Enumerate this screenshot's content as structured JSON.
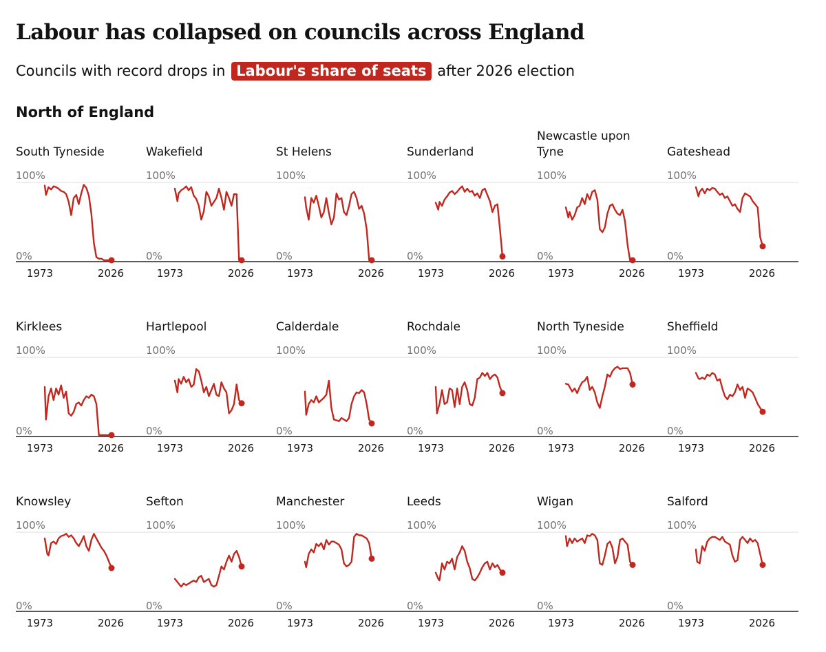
{
  "title": "Labour has collapsed on councils across England",
  "subtitle": {
    "before": "Councils with record drops in",
    "highlight": "Labour's share of seats",
    "after": "after 2026 election"
  },
  "section": "North of England",
  "colors": {
    "line": "#c0281f",
    "highlight_bg": "#c0281f",
    "axis": "#222222",
    "gridline": "#dddddd",
    "muted_text": "#707070"
  },
  "chart_data": {
    "type": "line",
    "layout": "small-multiples",
    "y_unit": "Labour share of seats (%)",
    "ylim": [
      0,
      100
    ],
    "xlim": [
      1973,
      2026
    ],
    "y_tick_labels": [
      "100%",
      "0%"
    ],
    "x_tick_labels": [
      "1973",
      "2026"
    ],
    "endpoint_marker": "dot",
    "panels": [
      {
        "name_lines": [
          "South Tyneside"
        ],
        "x": [
          1973,
          1974,
          1976,
          1978,
          1980,
          1982,
          1984,
          1986,
          1988,
          1990,
          1992,
          1994,
          1996,
          1998,
          2000,
          2002,
          2004,
          2006,
          2008,
          2010,
          2012,
          2014,
          2016,
          2018,
          2020,
          2022,
          2024,
          2026
        ],
        "values": [
          96,
          84,
          94,
          91,
          95,
          94,
          92,
          89,
          88,
          85,
          75,
          58,
          80,
          84,
          72,
          86,
          97,
          93,
          83,
          60,
          22,
          4,
          2,
          2,
          0,
          0,
          0,
          0
        ]
      },
      {
        "name_lines": [
          "Wakefield"
        ],
        "x": [
          1973,
          1975,
          1976,
          1978,
          1980,
          1982,
          1984,
          1986,
          1988,
          1990,
          1992,
          1994,
          1996,
          1998,
          2000,
          2002,
          2004,
          2006,
          2008,
          2010,
          2012,
          2014,
          2016,
          2018,
          2020,
          2022,
          2024,
          2026
        ],
        "values": [
          92,
          76,
          86,
          90,
          92,
          95,
          90,
          94,
          83,
          79,
          70,
          52,
          63,
          88,
          82,
          70,
          75,
          80,
          92,
          80,
          65,
          88,
          80,
          70,
          85,
          85,
          0,
          0
        ]
      },
      {
        "name_lines": [
          "St Helens"
        ],
        "x": [
          1973,
          1974,
          1976,
          1978,
          1980,
          1982,
          1984,
          1986,
          1988,
          1990,
          1992,
          1994,
          1996,
          1998,
          2000,
          2002,
          2004,
          2006,
          2008,
          2010,
          2012,
          2014,
          2016,
          2018,
          2020,
          2022,
          2024,
          2026
        ],
        "values": [
          81,
          68,
          52,
          80,
          74,
          83,
          70,
          55,
          62,
          80,
          61,
          46,
          55,
          86,
          78,
          80,
          62,
          58,
          70,
          85,
          88,
          80,
          66,
          70,
          60,
          40,
          0,
          0
        ]
      },
      {
        "name_lines": [
          "Sunderland"
        ],
        "x": [
          1973,
          1975,
          1976,
          1978,
          1980,
          1982,
          1984,
          1986,
          1988,
          1990,
          1992,
          1994,
          1996,
          1998,
          2000,
          2002,
          2004,
          2006,
          2008,
          2010,
          2012,
          2014,
          2016,
          2018,
          2020,
          2022,
          2024,
          2026
        ],
        "values": [
          74,
          65,
          75,
          70,
          78,
          82,
          87,
          89,
          85,
          88,
          92,
          95,
          88,
          92,
          88,
          89,
          83,
          86,
          80,
          90,
          92,
          84,
          76,
          62,
          70,
          72,
          40,
          5
        ]
      },
      {
        "name_lines": [
          "Newcastle upon",
          "Tyne"
        ],
        "x": [
          1973,
          1975,
          1976,
          1978,
          1980,
          1982,
          1984,
          1986,
          1988,
          1990,
          1992,
          1994,
          1996,
          1998,
          2000,
          2002,
          2004,
          2006,
          2008,
          2010,
          2012,
          2014,
          2016,
          2018,
          2020,
          2022,
          2024,
          2026
        ],
        "values": [
          68,
          55,
          62,
          52,
          58,
          68,
          70,
          80,
          72,
          85,
          78,
          88,
          90,
          78,
          40,
          36,
          42,
          60,
          70,
          72,
          65,
          60,
          58,
          65,
          50,
          20,
          0,
          0
        ]
      },
      {
        "name_lines": [
          "Gateshead"
        ],
        "x": [
          1973,
          1975,
          1976,
          1978,
          1980,
          1982,
          1984,
          1986,
          1988,
          1990,
          1992,
          1994,
          1996,
          1998,
          2000,
          2002,
          2004,
          2006,
          2008,
          2010,
          2012,
          2014,
          2016,
          2018,
          2020,
          2022,
          2024,
          2026
        ],
        "values": [
          94,
          82,
          88,
          92,
          86,
          92,
          90,
          93,
          92,
          88,
          84,
          86,
          80,
          82,
          76,
          70,
          72,
          66,
          62,
          80,
          86,
          84,
          82,
          76,
          72,
          68,
          30,
          18
        ]
      },
      {
        "name_lines": [
          "Kirklees"
        ],
        "x": [
          1973,
          1974,
          1976,
          1978,
          1980,
          1982,
          1984,
          1986,
          1988,
          1990,
          1992,
          1994,
          1996,
          1998,
          2000,
          2002,
          2004,
          2006,
          2008,
          2010,
          2012,
          2014,
          2016,
          2018,
          2020,
          2022,
          2024,
          2026
        ],
        "values": [
          62,
          20,
          50,
          60,
          45,
          60,
          52,
          64,
          48,
          56,
          28,
          25,
          30,
          40,
          42,
          38,
          45,
          50,
          48,
          52,
          50,
          40,
          0,
          0,
          0,
          0,
          0,
          0
        ]
      },
      {
        "name_lines": [
          "Hartlepool"
        ],
        "x": [
          1973,
          1975,
          1976,
          1978,
          1980,
          1982,
          1984,
          1986,
          1988,
          1990,
          1992,
          1994,
          1996,
          1998,
          2000,
          2002,
          2004,
          2006,
          2008,
          2010,
          2012,
          2014,
          2016,
          2018,
          2020,
          2022,
          2024,
          2026
        ],
        "values": [
          70,
          55,
          72,
          66,
          75,
          68,
          72,
          62,
          65,
          85,
          82,
          70,
          55,
          62,
          50,
          58,
          66,
          52,
          50,
          68,
          60,
          55,
          28,
          32,
          40,
          65,
          45,
          41
        ]
      },
      {
        "name_lines": [
          "Calderdale"
        ],
        "x": [
          1973,
          1974,
          1976,
          1978,
          1980,
          1982,
          1984,
          1986,
          1988,
          1990,
          1992,
          1994,
          1996,
          1998,
          2000,
          2002,
          2004,
          2006,
          2008,
          2010,
          2012,
          2014,
          2016,
          2018,
          2020,
          2022,
          2024,
          2026
        ],
        "values": [
          56,
          26,
          40,
          45,
          42,
          50,
          42,
          45,
          48,
          52,
          70,
          35,
          20,
          19,
          18,
          22,
          20,
          18,
          22,
          40,
          50,
          55,
          54,
          58,
          55,
          40,
          20,
          15
        ]
      },
      {
        "name_lines": [
          "Rochdale"
        ],
        "x": [
          1973,
          1974,
          1976,
          1978,
          1980,
          1982,
          1984,
          1986,
          1988,
          1990,
          1992,
          1994,
          1996,
          1998,
          2000,
          2002,
          2004,
          2006,
          2008,
          2010,
          2012,
          2014,
          2016,
          2018,
          2020,
          2022,
          2024,
          2026
        ],
        "values": [
          62,
          28,
          40,
          58,
          40,
          42,
          60,
          58,
          36,
          60,
          40,
          62,
          68,
          58,
          40,
          38,
          48,
          72,
          74,
          80,
          76,
          80,
          72,
          76,
          78,
          74,
          62,
          54
        ]
      },
      {
        "name_lines": [
          "North Tyneside"
        ],
        "x": [
          1973,
          1975,
          1976,
          1978,
          1980,
          1982,
          1984,
          1986,
          1988,
          1990,
          1992,
          1994,
          1996,
          1998,
          2000,
          2002,
          2004,
          2006,
          2008,
          2010,
          2012,
          2014,
          2016,
          2018,
          2020,
          2022,
          2024,
          2026
        ],
        "values": [
          66,
          65,
          62,
          56,
          60,
          54,
          62,
          68,
          70,
          75,
          58,
          62,
          55,
          42,
          35,
          50,
          62,
          78,
          75,
          82,
          86,
          88,
          85,
          86,
          86,
          86,
          80,
          65
        ]
      },
      {
        "name_lines": [
          "Sheffield"
        ],
        "x": [
          1973,
          1975,
          1976,
          1978,
          1980,
          1982,
          1984,
          1986,
          1988,
          1990,
          1992,
          1994,
          1996,
          1998,
          2000,
          2002,
          2004,
          2006,
          2008,
          2010,
          2012,
          2014,
          2016,
          2018,
          2020,
          2022,
          2024,
          2026
        ],
        "values": [
          80,
          73,
          72,
          74,
          72,
          78,
          76,
          80,
          78,
          70,
          72,
          60,
          50,
          46,
          52,
          50,
          55,
          65,
          58,
          62,
          48,
          60,
          58,
          55,
          48,
          40,
          35,
          30
        ]
      },
      {
        "name_lines": [
          "Knowsley"
        ],
        "x": [
          1973,
          1975,
          1976,
          1978,
          1980,
          1982,
          1984,
          1986,
          1988,
          1990,
          1992,
          1994,
          1996,
          1998,
          2000,
          2002,
          2004,
          2006,
          2008,
          2010,
          2012,
          2014,
          2016,
          2018,
          2020,
          2022,
          2024,
          2026
        ],
        "values": [
          92,
          72,
          70,
          86,
          88,
          85,
          92,
          95,
          96,
          98,
          94,
          96,
          92,
          86,
          82,
          88,
          95,
          82,
          76,
          90,
          98,
          92,
          86,
          80,
          76,
          70,
          62,
          54
        ]
      },
      {
        "name_lines": [
          "Sefton"
        ],
        "x": [
          1973,
          1975,
          1976,
          1978,
          1980,
          1982,
          1984,
          1986,
          1988,
          1990,
          1992,
          1994,
          1996,
          1998,
          2000,
          2002,
          2004,
          2006,
          2008,
          2010,
          2012,
          2014,
          2016,
          2018,
          2020,
          2022,
          2024,
          2026
        ],
        "values": [
          40,
          36,
          34,
          30,
          34,
          32,
          34,
          36,
          38,
          36,
          42,
          44,
          36,
          38,
          40,
          32,
          30,
          32,
          44,
          56,
          52,
          62,
          70,
          62,
          72,
          76,
          68,
          56
        ]
      },
      {
        "name_lines": [
          "Manchester"
        ],
        "x": [
          1973,
          1974,
          1976,
          1978,
          1980,
          1982,
          1984,
          1986,
          1988,
          1990,
          1992,
          1994,
          1996,
          1998,
          2000,
          2002,
          2004,
          2006,
          2008,
          2010,
          2012,
          2014,
          2016,
          2018,
          2020,
          2022,
          2024,
          2026
        ],
        "values": [
          62,
          55,
          72,
          78,
          74,
          85,
          82,
          86,
          78,
          90,
          84,
          88,
          88,
          86,
          84,
          78,
          60,
          56,
          58,
          62,
          94,
          98,
          96,
          96,
          94,
          92,
          86,
          66
        ]
      },
      {
        "name_lines": [
          "Leeds"
        ],
        "x": [
          1973,
          1975,
          1976,
          1978,
          1980,
          1982,
          1984,
          1986,
          1988,
          1990,
          1992,
          1994,
          1996,
          1998,
          2000,
          2002,
          2004,
          2006,
          2008,
          2010,
          2012,
          2014,
          2016,
          2018,
          2020,
          2022,
          2024,
          2026
        ],
        "values": [
          48,
          40,
          38,
          60,
          52,
          62,
          60,
          66,
          52,
          68,
          74,
          82,
          76,
          62,
          54,
          40,
          38,
          42,
          48,
          55,
          60,
          62,
          52,
          60,
          55,
          58,
          52,
          48
        ]
      },
      {
        "name_lines": [
          "Wigan"
        ],
        "x": [
          1973,
          1974,
          1976,
          1978,
          1980,
          1982,
          1984,
          1986,
          1988,
          1990,
          1992,
          1994,
          1996,
          1998,
          2000,
          2002,
          2004,
          2006,
          2008,
          2010,
          2012,
          2014,
          2016,
          2018,
          2020,
          2022,
          2024,
          2026
        ],
        "values": [
          95,
          82,
          92,
          86,
          92,
          88,
          90,
          92,
          86,
          96,
          95,
          98,
          96,
          90,
          60,
          58,
          70,
          85,
          88,
          80,
          60,
          68,
          90,
          92,
          88,
          84,
          62,
          58
        ]
      },
      {
        "name_lines": [
          "Salford"
        ],
        "x": [
          1973,
          1974,
          1976,
          1978,
          1980,
          1982,
          1984,
          1986,
          1988,
          1990,
          1992,
          1994,
          1996,
          1998,
          2000,
          2002,
          2004,
          2006,
          2008,
          2010,
          2012,
          2014,
          2016,
          2018,
          2020,
          2022,
          2024,
          2026
        ],
        "values": [
          78,
          62,
          60,
          82,
          76,
          88,
          92,
          94,
          94,
          92,
          90,
          94,
          88,
          86,
          84,
          70,
          62,
          64,
          90,
          94,
          90,
          86,
          92,
          88,
          90,
          86,
          72,
          58
        ]
      }
    ]
  }
}
